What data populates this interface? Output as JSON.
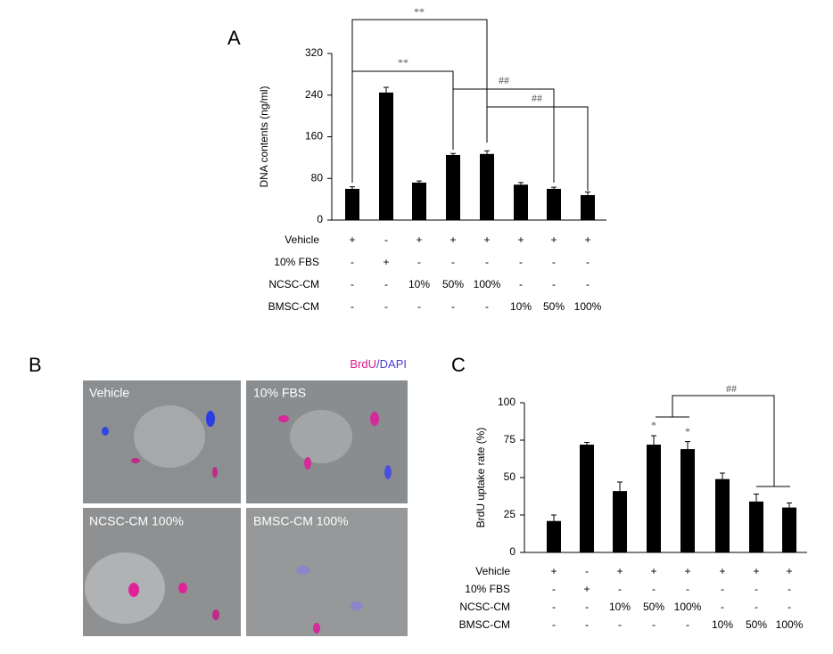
{
  "panel_letters": [
    "A",
    "B",
    "C"
  ],
  "images": {
    "legend": [
      "BrdU",
      "/DAPI"
    ],
    "labels": [
      "Vehicle",
      "10% FBS",
      "NCSC-CM 100%",
      "BMSC-CM 100%"
    ]
  },
  "chart_data": [
    {
      "type": "bar",
      "y_label": "DNA contents (ng/ml)",
      "color": "#000000",
      "values": [
        60,
        245,
        72,
        125,
        127,
        68,
        60,
        48
      ],
      "errors": [
        4,
        10,
        3,
        3,
        6,
        4,
        3,
        6
      ],
      "ylim": [
        0,
        320
      ],
      "yticks": [
        0,
        80,
        160,
        240,
        320
      ],
      "annotations": [
        "**",
        "**",
        "##",
        "##"
      ],
      "conditions": [
        {
          "label": "Vehicle",
          "values": [
            "+",
            "-",
            "+",
            "+",
            "+",
            "+",
            "+",
            "+"
          ]
        },
        {
          "label": "10% FBS",
          "values": [
            "-",
            "+",
            "-",
            "-",
            "-",
            "-",
            "-",
            "-"
          ]
        },
        {
          "label": "NCSC-CM",
          "values": [
            "-",
            "-",
            "10%",
            "50%",
            "100%",
            "-",
            "-",
            "-"
          ]
        },
        {
          "label": "BMSC-CM",
          "values": [
            "-",
            "-",
            "-",
            "-",
            "-",
            "10%",
            "50%",
            "100%"
          ]
        }
      ]
    },
    {
      "type": "bar",
      "y_label": "BrdU uptake rate (%)",
      "color": "#000000",
      "values": [
        21,
        72,
        41,
        72,
        69,
        49,
        34,
        30
      ],
      "errors": [
        4,
        1.5,
        6,
        6,
        5,
        4,
        5,
        3
      ],
      "ylim": [
        0,
        100
      ],
      "yticks": [
        0,
        25,
        50,
        75,
        100
      ],
      "annotations": [
        "*",
        "*",
        "##"
      ],
      "conditions": [
        {
          "label": "Vehicle",
          "values": [
            "+",
            "-",
            "+",
            "+",
            "+",
            "+",
            "+",
            "+"
          ]
        },
        {
          "label": "10% FBS",
          "values": [
            "-",
            "+",
            "-",
            "-",
            "-",
            "-",
            "-",
            "-"
          ]
        },
        {
          "label": "NCSC-CM",
          "values": [
            "-",
            "-",
            "10%",
            "50%",
            "100%",
            "-",
            "-",
            "-"
          ]
        },
        {
          "label": "BMSC-CM",
          "values": [
            "-",
            "-",
            "-",
            "-",
            "-",
            "10%",
            "50%",
            "100%"
          ]
        }
      ]
    }
  ]
}
